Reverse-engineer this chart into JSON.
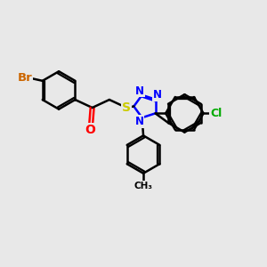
{
  "background_color": "#e8e8e8",
  "bond_color": "#000000",
  "atom_colors": {
    "Br": "#cc6600",
    "O": "#ff0000",
    "S": "#cccc00",
    "N": "#0000ff",
    "Cl": "#00aa00",
    "C": "#000000"
  },
  "bond_width": 1.8,
  "font_size": 10,
  "figsize": [
    3.0,
    3.0
  ],
  "dpi": 100,
  "xlim": [
    0,
    10
  ],
  "ylim": [
    0,
    10
  ]
}
